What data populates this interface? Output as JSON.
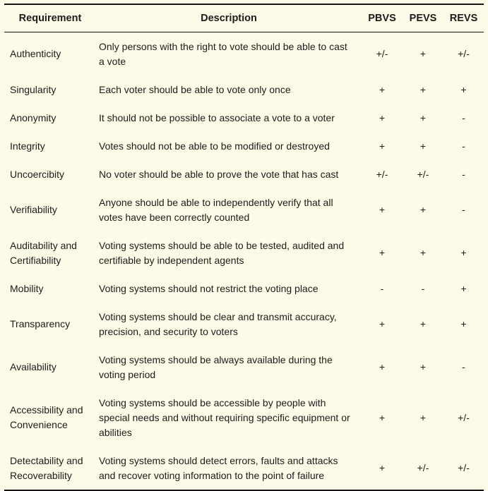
{
  "colors": {
    "background": "#FCFBE7",
    "text": "#1C1C1C",
    "rule": "#141414"
  },
  "table": {
    "headers": {
      "requirement": "Requirement",
      "description": "Description",
      "pbvs": "PBVS",
      "pevs": "PEVS",
      "revs": "REVS"
    },
    "rows": [
      {
        "requirement": "Authenticity",
        "description": "Only persons with the right to vote should be able to cast a vote",
        "pbvs": "+/-",
        "pevs": "+",
        "revs": "+/-"
      },
      {
        "requirement": "Singularity",
        "description": "Each voter should be able to vote only once",
        "pbvs": "+",
        "pevs": "+",
        "revs": "+"
      },
      {
        "requirement": "Anonymity",
        "description": "It should not be possible to associate a vote to a voter",
        "pbvs": "+",
        "pevs": "+",
        "revs": "-"
      },
      {
        "requirement": "Integrity",
        "description": "Votes should not be able to be modified or destroyed",
        "pbvs": "+",
        "pevs": "+",
        "revs": "-"
      },
      {
        "requirement": "Uncoercibity",
        "description": "No voter should be able to prove the vote that has cast",
        "pbvs": "+/-",
        "pevs": "+/-",
        "revs": "-"
      },
      {
        "requirement": "Verifiability",
        "description": "Anyone should be able to independently verify that all votes have been correctly counted",
        "pbvs": "+",
        "pevs": "+",
        "revs": "-"
      },
      {
        "requirement": "Auditability and Certifiability",
        "description": "Voting systems should be able to be tested, audited and certifiable by independent agents",
        "pbvs": "+",
        "pevs": "+",
        "revs": "+"
      },
      {
        "requirement": "Mobility",
        "description": "Voting systems should not restrict the voting place",
        "pbvs": "-",
        "pevs": "-",
        "revs": "+"
      },
      {
        "requirement": "Transparency",
        "description": "Voting systems should be clear and transmit accuracy, precision, and security to voters",
        "pbvs": "+",
        "pevs": "+",
        "revs": "+"
      },
      {
        "requirement": "Availability",
        "description": "Voting systems should be always available during the voting period",
        "pbvs": "+",
        "pevs": "+",
        "revs": "-"
      },
      {
        "requirement": "Accessibility and Convenience",
        "description": "Voting systems should be accessible by people with special needs and without requiring specific equipment or abilities",
        "pbvs": "+",
        "pevs": "+",
        "revs": "+/-"
      },
      {
        "requirement": "Detectability and Recoverability",
        "description": "Voting systems should detect errors, faults and attacks and recover voting information to the point of failure",
        "pbvs": "+",
        "pevs": "+/-",
        "revs": "+/-"
      }
    ]
  }
}
